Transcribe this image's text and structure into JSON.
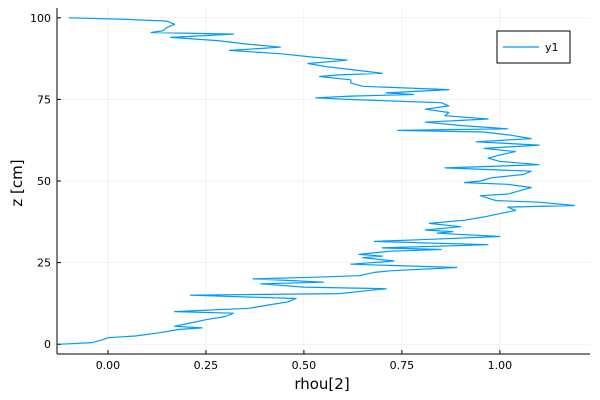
{
  "chart_data": {
    "type": "line",
    "title": "",
    "xlabel": "rhou[2]",
    "ylabel": "z [cm]",
    "xlim": [
      -0.13,
      1.23
    ],
    "ylim": [
      -3,
      103
    ],
    "xticks": [
      0.0,
      0.25,
      0.5,
      0.75,
      1.0
    ],
    "xtick_labels": [
      "0.00",
      "0.25",
      "0.50",
      "0.75",
      "1.00"
    ],
    "yticks": [
      0,
      25,
      50,
      75,
      100
    ],
    "ytick_labels": [
      "0",
      "25",
      "50",
      "75",
      "100"
    ],
    "grid": true,
    "legend_position": "top-right",
    "series": [
      {
        "name": "y1",
        "color": "#009af9",
        "points": [
          [
            -0.12,
            0
          ],
          [
            -0.04,
            0.5
          ],
          [
            -0.01,
            1.5
          ],
          [
            0.0,
            2
          ],
          [
            0.07,
            2.5
          ],
          [
            0.13,
            3.5
          ],
          [
            0.18,
            4.5
          ],
          [
            0.24,
            5
          ],
          [
            0.17,
            5.5
          ],
          [
            0.21,
            6.5
          ],
          [
            0.25,
            7.5
          ],
          [
            0.3,
            8.5
          ],
          [
            0.32,
            9.5
          ],
          [
            0.17,
            10
          ],
          [
            0.36,
            11
          ],
          [
            0.41,
            12
          ],
          [
            0.46,
            13
          ],
          [
            0.48,
            14
          ],
          [
            0.21,
            15
          ],
          [
            0.59,
            15.5
          ],
          [
            0.67,
            16.5
          ],
          [
            0.71,
            17
          ],
          [
            0.5,
            17.5
          ],
          [
            0.39,
            18.5
          ],
          [
            0.55,
            19
          ],
          [
            0.47,
            19.5
          ],
          [
            0.37,
            20
          ],
          [
            0.52,
            20.5
          ],
          [
            0.64,
            21
          ],
          [
            0.68,
            22
          ],
          [
            0.72,
            22.5
          ],
          [
            0.89,
            23.5
          ],
          [
            0.76,
            24
          ],
          [
            0.62,
            24.5
          ],
          [
            0.73,
            25.5
          ],
          [
            0.65,
            26.5
          ],
          [
            0.7,
            27
          ],
          [
            0.64,
            27.5
          ],
          [
            0.72,
            28.5
          ],
          [
            0.85,
            29
          ],
          [
            0.7,
            29.5
          ],
          [
            0.97,
            30.5
          ],
          [
            0.68,
            31.5
          ],
          [
            0.79,
            32
          ],
          [
            1.0,
            33
          ],
          [
            0.84,
            34
          ],
          [
            0.88,
            34.5
          ],
          [
            0.81,
            35
          ],
          [
            0.9,
            36
          ],
          [
            0.82,
            37
          ],
          [
            0.91,
            38
          ],
          [
            0.96,
            39
          ],
          [
            1.0,
            40
          ],
          [
            1.04,
            41
          ],
          [
            1.02,
            42
          ],
          [
            1.19,
            42.5
          ],
          [
            1.1,
            43.5
          ],
          [
            0.99,
            44
          ],
          [
            0.95,
            45.5
          ],
          [
            1.02,
            46
          ],
          [
            1.05,
            47
          ],
          [
            1.08,
            48
          ],
          [
            1.02,
            49
          ],
          [
            0.91,
            49.5
          ],
          [
            0.95,
            50
          ],
          [
            0.98,
            51
          ],
          [
            1.06,
            52
          ],
          [
            1.08,
            53
          ],
          [
            0.86,
            54
          ],
          [
            1.1,
            55
          ],
          [
            1.0,
            56
          ],
          [
            0.97,
            57
          ],
          [
            1.0,
            58
          ],
          [
            1.04,
            59
          ],
          [
            0.96,
            60
          ],
          [
            1.1,
            61
          ],
          [
            0.94,
            62
          ],
          [
            1.08,
            63
          ],
          [
            1.03,
            64
          ],
          [
            0.96,
            65
          ],
          [
            0.74,
            65.5
          ],
          [
            1.02,
            66
          ],
          [
            0.9,
            67
          ],
          [
            0.81,
            68
          ],
          [
            0.97,
            69
          ],
          [
            0.86,
            70
          ],
          [
            0.87,
            71
          ],
          [
            0.81,
            72
          ],
          [
            0.87,
            73
          ],
          [
            0.85,
            74
          ],
          [
            0.61,
            75
          ],
          [
            0.53,
            75.5
          ],
          [
            0.62,
            76
          ],
          [
            0.78,
            76.5
          ],
          [
            0.71,
            77
          ],
          [
            0.87,
            78
          ],
          [
            0.65,
            79
          ],
          [
            0.62,
            80
          ],
          [
            0.62,
            81
          ],
          [
            0.54,
            82
          ],
          [
            0.59,
            82.5
          ],
          [
            0.7,
            83
          ],
          [
            0.63,
            84
          ],
          [
            0.56,
            85
          ],
          [
            0.51,
            86
          ],
          [
            0.61,
            87
          ],
          [
            0.52,
            88
          ],
          [
            0.44,
            89
          ],
          [
            0.31,
            90
          ],
          [
            0.44,
            91
          ],
          [
            0.35,
            92
          ],
          [
            0.28,
            93
          ],
          [
            0.16,
            94
          ],
          [
            0.32,
            95
          ],
          [
            0.11,
            95.5
          ],
          [
            0.14,
            96
          ],
          [
            0.15,
            97
          ],
          [
            0.17,
            98
          ],
          [
            0.15,
            99
          ],
          [
            0.05,
            99.5
          ],
          [
            -0.1,
            100
          ]
        ]
      }
    ]
  }
}
